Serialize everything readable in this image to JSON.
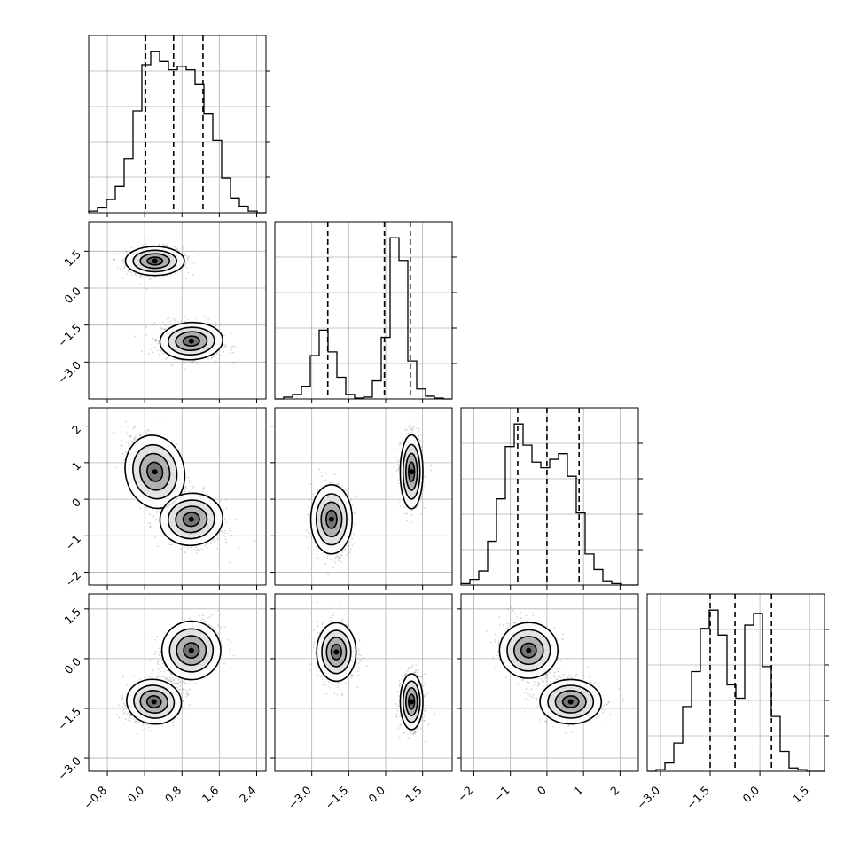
{
  "chart_data": {
    "type": "corner",
    "variables": 4,
    "grid": true,
    "hist_bins": 20,
    "style": {
      "line_color": "#000000",
      "grid_color": "#b0b0b0",
      "fill_color": "#000000",
      "point_color": "#888888"
    },
    "ranges": [
      [
        -1.2,
        2.6
      ],
      [
        -4.5,
        2.7
      ],
      [
        -2.35,
        2.5
      ],
      [
        -3.4,
        1.95
      ]
    ],
    "ticks": [
      [
        -0.8,
        0.0,
        0.8,
        1.6,
        2.4
      ],
      [
        -3.0,
        -1.5,
        0.0,
        1.5
      ],
      [
        -2,
        -1,
        0,
        1,
        2
      ],
      [
        -3.0,
        -1.5,
        0.0,
        1.5
      ]
    ],
    "tick_labels": [
      [
        "−0.8",
        "0.0",
        "0.8",
        "1.6",
        "2.4"
      ],
      [
        "−3.0",
        "−1.5",
        "0.0",
        "1.5"
      ],
      [
        "−2",
        "−1",
        "0",
        "1",
        "2"
      ],
      [
        "−3.0",
        "−1.5",
        "0.0",
        "1.5"
      ]
    ],
    "quantiles": [
      [
        0.02,
        0.62,
        1.25
      ],
      [
        -2.35,
        -0.05,
        1.0
      ],
      [
        -0.8,
        0.0,
        0.88
      ],
      [
        -1.5,
        -0.75,
        0.35
      ]
    ],
    "marginals": [
      {
        "variable": 0,
        "bin_start": -1.2,
        "bin_width": 0.19,
        "counts": [
          1,
          3,
          8,
          16,
          33,
          62,
          90,
          98,
          92,
          87,
          89,
          87,
          78,
          60,
          44,
          21,
          9,
          4,
          1,
          0
        ]
      },
      {
        "variable": 1,
        "bin_start": -4.5,
        "bin_width": 0.36,
        "counts": [
          0,
          2,
          5,
          14,
          48,
          76,
          52,
          24,
          5,
          1,
          2,
          20,
          68,
          178,
          153,
          42,
          11,
          3,
          1,
          0
        ]
      },
      {
        "variable": 2,
        "bin_start": -2.35,
        "bin_width": 0.2425,
        "counts": [
          1,
          4,
          10,
          31,
          61,
          98,
          114,
          99,
          87,
          83,
          89,
          93,
          77,
          51,
          22,
          11,
          3,
          1,
          0,
          0
        ]
      },
      {
        "variable": 3,
        "bin_start": -3.4,
        "bin_width": 0.2675,
        "counts": [
          0,
          1,
          5,
          17,
          39,
          60,
          86,
          97,
          82,
          52,
          44,
          88,
          95,
          63,
          33,
          12,
          2,
          1,
          0,
          0
        ]
      }
    ],
    "joint": [
      {
        "row": 1,
        "col": 0,
        "clusters": [
          {
            "mean": [
              0.22,
              1.1
            ],
            "sd": [
              0.3,
              0.28
            ],
            "rho": 0.0
          },
          {
            "mean": [
              1.0,
              -2.15
            ],
            "sd": [
              0.32,
              0.36
            ],
            "rho": -0.1
          }
        ]
      },
      {
        "row": 2,
        "col": 0,
        "clusters": [
          {
            "mean": [
              0.22,
              0.75
            ],
            "sd": [
              0.3,
              0.48
            ],
            "rho": -0.5
          },
          {
            "mean": [
              1.0,
              -0.55
            ],
            "sd": [
              0.32,
              0.34
            ],
            "rho": -0.2
          }
        ]
      },
      {
        "row": 2,
        "col": 1,
        "clusters": [
          {
            "mean": [
              -2.2,
              -0.55
            ],
            "sd": [
              0.4,
              0.45
            ],
            "rho": 0.0
          },
          {
            "mean": [
              1.05,
              0.75
            ],
            "sd": [
              0.22,
              0.48
            ],
            "rho": 0.0
          }
        ]
      },
      {
        "row": 3,
        "col": 0,
        "clusters": [
          {
            "mean": [
              0.2,
              -1.3
            ],
            "sd": [
              0.28,
              0.32
            ],
            "rho": 0.3
          },
          {
            "mean": [
              1.0,
              0.25
            ],
            "sd": [
              0.3,
              0.42
            ],
            "rho": 0.3
          }
        ]
      },
      {
        "row": 3,
        "col": 1,
        "clusters": [
          {
            "mean": [
              -2.0,
              0.2
            ],
            "sd": [
              0.38,
              0.42
            ],
            "rho": 0.0
          },
          {
            "mean": [
              1.05,
              -1.3
            ],
            "sd": [
              0.22,
              0.4
            ],
            "rho": 0.0
          }
        ]
      },
      {
        "row": 3,
        "col": 2,
        "clusters": [
          {
            "mean": [
              -0.5,
              0.25
            ],
            "sd": [
              0.38,
              0.4
            ],
            "rho": -0.2
          },
          {
            "mean": [
              0.65,
              -1.3
            ],
            "sd": [
              0.4,
              0.32
            ],
            "rho": 0.0
          }
        ]
      }
    ]
  }
}
